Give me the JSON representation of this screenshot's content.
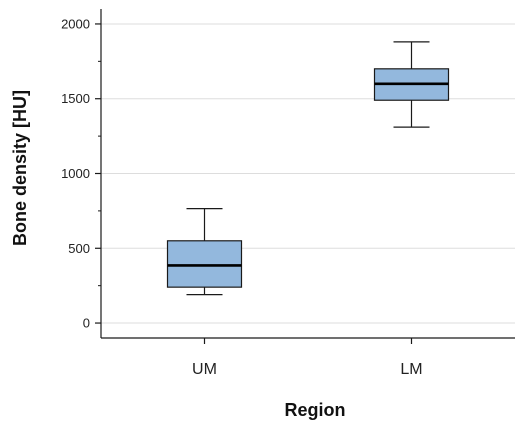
{
  "chart_data": {
    "type": "box",
    "title": "",
    "xlabel": "Region",
    "ylabel": "Bone density [HU]",
    "ylim": [
      -100,
      2100
    ],
    "y_ticks": [
      0,
      500,
      1000,
      1500,
      2000
    ],
    "y_minor_ticks": [
      250,
      750,
      1250,
      1750
    ],
    "grid": "horizontal-major",
    "categories": [
      "UM",
      "LM"
    ],
    "boxes": [
      {
        "category": "UM",
        "whisker_low": 190,
        "q1": 240,
        "median": 385,
        "q3": 550,
        "whisker_high": 765
      },
      {
        "category": "LM",
        "whisker_low": 1310,
        "q1": 1490,
        "median": 1600,
        "q3": 1700,
        "whisker_high": 1880
      }
    ],
    "colors": {
      "box_fill": "#93b8dd",
      "box_stroke": "#1a1a1a",
      "grid": "#dddddd",
      "axis": "#1a1a1a"
    }
  }
}
